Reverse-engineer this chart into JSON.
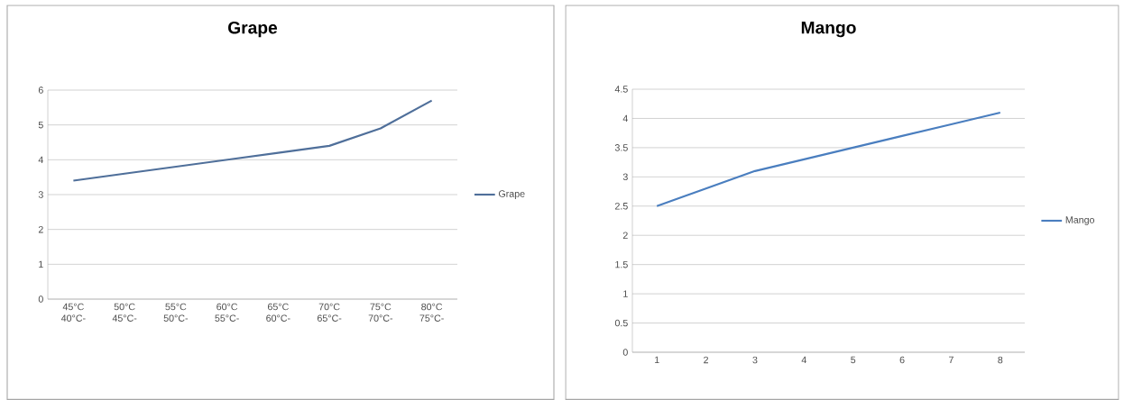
{
  "chart_data": [
    {
      "type": "line",
      "title": "Grape",
      "categories": [
        "45°C 40°C-",
        "50°C 45°C-",
        "55°C 50°C-",
        "60°C 55°C-",
        "65°C 60°C-",
        "70°C 65°C-",
        "75°C 70°C-",
        "80°C 75°C-"
      ],
      "series": [
        {
          "name": "Grape",
          "color": "#4f6f9a",
          "values": [
            3.4,
            3.6,
            3.8,
            4.0,
            4.2,
            4.4,
            4.9,
            5.7
          ]
        }
      ],
      "ylim": [
        0,
        6
      ],
      "yticks": [
        0,
        1,
        2,
        3,
        4,
        5,
        6
      ],
      "grid": "y",
      "legend": "right",
      "marker": "none"
    },
    {
      "type": "line",
      "title": "Mango",
      "categories": [
        "1",
        "2",
        "3",
        "4",
        "5",
        "6",
        "7",
        "8"
      ],
      "series": [
        {
          "name": "Mango",
          "color": "#4a7ebf",
          "values": [
            2.5,
            2.8,
            3.1,
            3.3,
            3.5,
            3.7,
            3.9,
            4.1
          ]
        }
      ],
      "ylim": [
        0,
        4.5
      ],
      "yticks": [
        0,
        0.5,
        1,
        1.5,
        2,
        2.5,
        3,
        3.5,
        4,
        4.5
      ],
      "grid": "y",
      "legend": "right",
      "marker": "none"
    }
  ]
}
